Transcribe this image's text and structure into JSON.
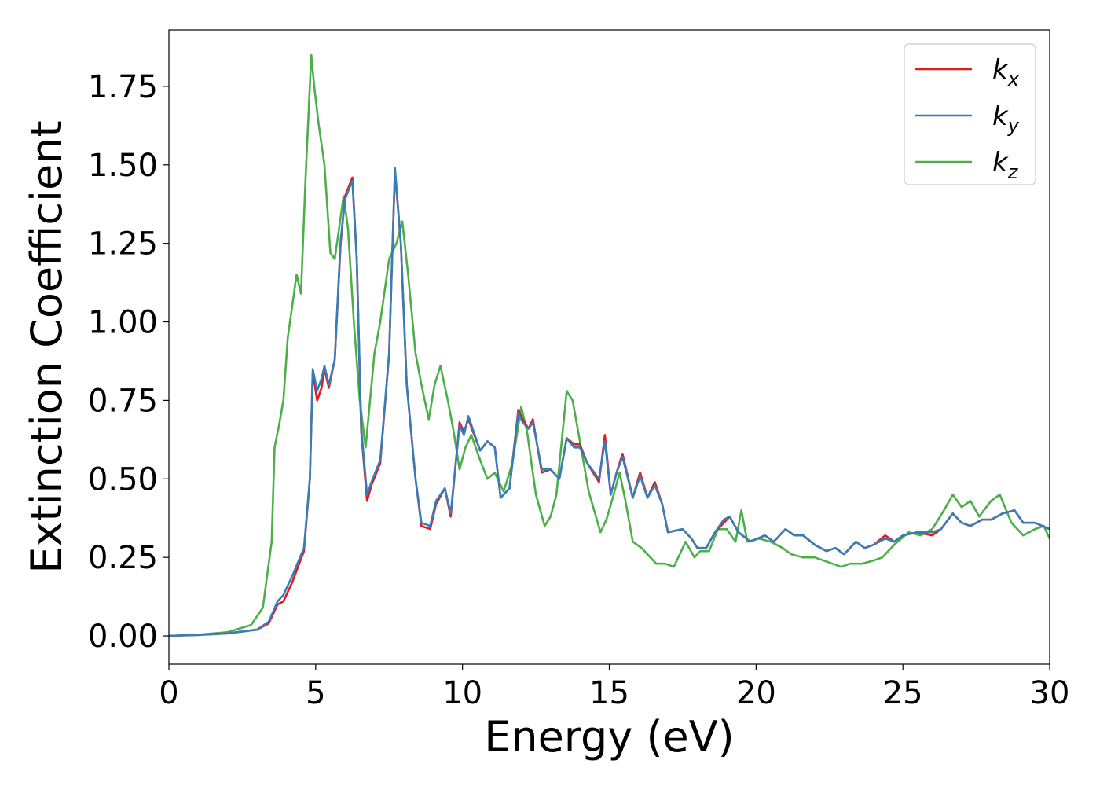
{
  "chart_data": {
    "type": "line",
    "title": "",
    "xlabel": "Energy (eV)",
    "ylabel": "Extinction Coefficient",
    "xlim": [
      0,
      30
    ],
    "ylim": [
      -0.09,
      1.93
    ],
    "xticks": [
      0,
      5,
      10,
      15,
      20,
      25,
      30
    ],
    "xtick_labels": [
      "0",
      "5",
      "10",
      "15",
      "20",
      "25",
      "30"
    ],
    "yticks": [
      0,
      0.25,
      0.5,
      0.75,
      1.0,
      1.25,
      1.5,
      1.75
    ],
    "ytick_labels": [
      "0.00",
      "0.25",
      "0.50",
      "0.75",
      "1.00",
      "1.25",
      "1.50",
      "1.75"
    ],
    "grid": false,
    "legend_position": "top-right",
    "series": [
      {
        "name": "k_x",
        "label_base": "k",
        "label_sub": "x",
        "color": "#e41a1c",
        "points": [
          [
            0,
            0
          ],
          [
            1,
            0.003
          ],
          [
            2,
            0.008
          ],
          [
            3,
            0.02
          ],
          [
            3.4,
            0.04
          ],
          [
            3.7,
            0.1
          ],
          [
            3.9,
            0.11
          ],
          [
            4.2,
            0.17
          ],
          [
            4.6,
            0.27
          ],
          [
            4.8,
            0.5
          ],
          [
            4.9,
            0.84
          ],
          [
            5.05,
            0.75
          ],
          [
            5.2,
            0.79
          ],
          [
            5.3,
            0.85
          ],
          [
            5.45,
            0.79
          ],
          [
            5.65,
            0.88
          ],
          [
            5.85,
            1.25
          ],
          [
            6.0,
            1.4
          ],
          [
            6.25,
            1.46
          ],
          [
            6.4,
            1.2
          ],
          [
            6.55,
            0.65
          ],
          [
            6.75,
            0.43
          ],
          [
            6.9,
            0.48
          ],
          [
            7.2,
            0.55
          ],
          [
            7.5,
            0.9
          ],
          [
            7.7,
            1.48
          ],
          [
            7.9,
            1.25
          ],
          [
            8.1,
            0.8
          ],
          [
            8.4,
            0.5
          ],
          [
            8.6,
            0.35
          ],
          [
            8.9,
            0.34
          ],
          [
            9.1,
            0.42
          ],
          [
            9.4,
            0.47
          ],
          [
            9.6,
            0.38
          ],
          [
            9.9,
            0.68
          ],
          [
            10.05,
            0.65
          ],
          [
            10.2,
            0.69
          ],
          [
            10.6,
            0.59
          ],
          [
            10.85,
            0.62
          ],
          [
            11.1,
            0.6
          ],
          [
            11.3,
            0.44
          ],
          [
            11.6,
            0.47
          ],
          [
            11.9,
            0.72
          ],
          [
            12.05,
            0.69
          ],
          [
            12.25,
            0.66
          ],
          [
            12.4,
            0.69
          ],
          [
            12.7,
            0.52
          ],
          [
            13.0,
            0.53
          ],
          [
            13.3,
            0.5
          ],
          [
            13.55,
            0.63
          ],
          [
            13.8,
            0.61
          ],
          [
            14.0,
            0.61
          ],
          [
            14.25,
            0.55
          ],
          [
            14.65,
            0.49
          ],
          [
            14.85,
            0.64
          ],
          [
            15.05,
            0.45
          ],
          [
            15.25,
            0.52
          ],
          [
            15.45,
            0.58
          ],
          [
            15.8,
            0.44
          ],
          [
            16.05,
            0.52
          ],
          [
            16.3,
            0.44
          ],
          [
            16.55,
            0.49
          ],
          [
            16.8,
            0.42
          ],
          [
            17.0,
            0.33
          ],
          [
            17.5,
            0.34
          ],
          [
            17.8,
            0.31
          ],
          [
            18.0,
            0.28
          ],
          [
            18.3,
            0.28
          ],
          [
            18.6,
            0.33
          ],
          [
            18.9,
            0.36
          ],
          [
            19.1,
            0.38
          ],
          [
            19.4,
            0.33
          ],
          [
            19.8,
            0.3
          ],
          [
            20.3,
            0.32
          ],
          [
            20.6,
            0.3
          ],
          [
            21.0,
            0.34
          ],
          [
            21.3,
            0.32
          ],
          [
            21.6,
            0.32
          ],
          [
            22.0,
            0.29
          ],
          [
            22.4,
            0.27
          ],
          [
            22.7,
            0.28
          ],
          [
            23.0,
            0.26
          ],
          [
            23.4,
            0.3
          ],
          [
            23.7,
            0.28
          ],
          [
            24.0,
            0.29
          ],
          [
            24.4,
            0.32
          ],
          [
            24.7,
            0.3
          ],
          [
            25.0,
            0.32
          ],
          [
            25.5,
            0.33
          ],
          [
            26.0,
            0.32
          ],
          [
            26.3,
            0.34
          ],
          [
            26.7,
            0.39
          ],
          [
            27.0,
            0.36
          ],
          [
            27.3,
            0.35
          ],
          [
            27.7,
            0.37
          ],
          [
            28.0,
            0.37
          ],
          [
            28.4,
            0.39
          ],
          [
            28.8,
            0.4
          ],
          [
            29.1,
            0.36
          ],
          [
            29.5,
            0.36
          ],
          [
            30,
            0.34
          ]
        ]
      },
      {
        "name": "k_y",
        "label_base": "k",
        "label_sub": "y",
        "color": "#377eb8",
        "points": [
          [
            0,
            0
          ],
          [
            1,
            0.003
          ],
          [
            2,
            0.008
          ],
          [
            3,
            0.02
          ],
          [
            3.4,
            0.045
          ],
          [
            3.7,
            0.11
          ],
          [
            3.9,
            0.13
          ],
          [
            4.2,
            0.19
          ],
          [
            4.6,
            0.28
          ],
          [
            4.8,
            0.5
          ],
          [
            4.9,
            0.85
          ],
          [
            5.05,
            0.78
          ],
          [
            5.2,
            0.82
          ],
          [
            5.3,
            0.86
          ],
          [
            5.45,
            0.8
          ],
          [
            5.65,
            0.88
          ],
          [
            5.85,
            1.26
          ],
          [
            6.0,
            1.39
          ],
          [
            6.25,
            1.45
          ],
          [
            6.4,
            1.2
          ],
          [
            6.55,
            0.66
          ],
          [
            6.75,
            0.45
          ],
          [
            6.9,
            0.49
          ],
          [
            7.2,
            0.56
          ],
          [
            7.5,
            0.9
          ],
          [
            7.7,
            1.49
          ],
          [
            7.9,
            1.25
          ],
          [
            8.1,
            0.8
          ],
          [
            8.4,
            0.5
          ],
          [
            8.6,
            0.36
          ],
          [
            8.9,
            0.35
          ],
          [
            9.1,
            0.43
          ],
          [
            9.4,
            0.47
          ],
          [
            9.6,
            0.39
          ],
          [
            9.9,
            0.67
          ],
          [
            10.05,
            0.64
          ],
          [
            10.2,
            0.7
          ],
          [
            10.6,
            0.59
          ],
          [
            10.85,
            0.62
          ],
          [
            11.1,
            0.6
          ],
          [
            11.3,
            0.44
          ],
          [
            11.6,
            0.47
          ],
          [
            11.9,
            0.71
          ],
          [
            12.05,
            0.68
          ],
          [
            12.25,
            0.66
          ],
          [
            12.4,
            0.68
          ],
          [
            12.7,
            0.53
          ],
          [
            13.0,
            0.53
          ],
          [
            13.3,
            0.5
          ],
          [
            13.55,
            0.63
          ],
          [
            13.8,
            0.6
          ],
          [
            14.0,
            0.6
          ],
          [
            14.25,
            0.55
          ],
          [
            14.65,
            0.5
          ],
          [
            14.85,
            0.62
          ],
          [
            15.05,
            0.45
          ],
          [
            15.25,
            0.52
          ],
          [
            15.45,
            0.57
          ],
          [
            15.8,
            0.44
          ],
          [
            16.05,
            0.51
          ],
          [
            16.3,
            0.44
          ],
          [
            16.55,
            0.48
          ],
          [
            16.8,
            0.42
          ],
          [
            17.0,
            0.33
          ],
          [
            17.5,
            0.34
          ],
          [
            17.8,
            0.31
          ],
          [
            18.0,
            0.28
          ],
          [
            18.3,
            0.28
          ],
          [
            18.6,
            0.33
          ],
          [
            18.9,
            0.37
          ],
          [
            19.1,
            0.38
          ],
          [
            19.4,
            0.33
          ],
          [
            19.8,
            0.3
          ],
          [
            20.3,
            0.32
          ],
          [
            20.6,
            0.3
          ],
          [
            21.0,
            0.34
          ],
          [
            21.3,
            0.32
          ],
          [
            21.6,
            0.32
          ],
          [
            22.0,
            0.29
          ],
          [
            22.4,
            0.27
          ],
          [
            22.7,
            0.28
          ],
          [
            23.0,
            0.26
          ],
          [
            23.4,
            0.3
          ],
          [
            23.7,
            0.28
          ],
          [
            24.0,
            0.29
          ],
          [
            24.4,
            0.31
          ],
          [
            24.7,
            0.3
          ],
          [
            25.0,
            0.32
          ],
          [
            25.5,
            0.33
          ],
          [
            26.0,
            0.33
          ],
          [
            26.3,
            0.34
          ],
          [
            26.7,
            0.39
          ],
          [
            27.0,
            0.36
          ],
          [
            27.3,
            0.35
          ],
          [
            27.7,
            0.37
          ],
          [
            28.0,
            0.37
          ],
          [
            28.4,
            0.39
          ],
          [
            28.8,
            0.4
          ],
          [
            29.1,
            0.36
          ],
          [
            29.5,
            0.36
          ],
          [
            30,
            0.34
          ]
        ]
      },
      {
        "name": "k_z",
        "label_base": "k",
        "label_sub": "z",
        "color": "#4daf4a",
        "points": [
          [
            0,
            0
          ],
          [
            1,
            0.004
          ],
          [
            2,
            0.012
          ],
          [
            2.8,
            0.035
          ],
          [
            3.2,
            0.09
          ],
          [
            3.5,
            0.3
          ],
          [
            3.6,
            0.6
          ],
          [
            3.75,
            0.67
          ],
          [
            3.9,
            0.75
          ],
          [
            4.05,
            0.95
          ],
          [
            4.2,
            1.05
          ],
          [
            4.35,
            1.15
          ],
          [
            4.5,
            1.09
          ],
          [
            4.65,
            1.45
          ],
          [
            4.85,
            1.85
          ],
          [
            4.95,
            1.75
          ],
          [
            5.1,
            1.63
          ],
          [
            5.3,
            1.5
          ],
          [
            5.5,
            1.22
          ],
          [
            5.65,
            1.2
          ],
          [
            5.8,
            1.3
          ],
          [
            5.95,
            1.4
          ],
          [
            6.1,
            1.3
          ],
          [
            6.3,
            1.0
          ],
          [
            6.5,
            0.75
          ],
          [
            6.7,
            0.6
          ],
          [
            6.85,
            0.75
          ],
          [
            7.0,
            0.9
          ],
          [
            7.2,
            1.0
          ],
          [
            7.5,
            1.2
          ],
          [
            7.75,
            1.25
          ],
          [
            7.95,
            1.32
          ],
          [
            8.15,
            1.15
          ],
          [
            8.4,
            0.9
          ],
          [
            8.6,
            0.8
          ],
          [
            8.85,
            0.69
          ],
          [
            9.05,
            0.8
          ],
          [
            9.25,
            0.86
          ],
          [
            9.5,
            0.75
          ],
          [
            9.7,
            0.65
          ],
          [
            9.9,
            0.53
          ],
          [
            10.1,
            0.6
          ],
          [
            10.3,
            0.64
          ],
          [
            10.6,
            0.56
          ],
          [
            10.85,
            0.5
          ],
          [
            11.1,
            0.52
          ],
          [
            11.4,
            0.46
          ],
          [
            11.7,
            0.55
          ],
          [
            12.0,
            0.73
          ],
          [
            12.2,
            0.65
          ],
          [
            12.5,
            0.45
          ],
          [
            12.8,
            0.35
          ],
          [
            13.0,
            0.38
          ],
          [
            13.2,
            0.45
          ],
          [
            13.55,
            0.78
          ],
          [
            13.75,
            0.75
          ],
          [
            14.0,
            0.62
          ],
          [
            14.3,
            0.46
          ],
          [
            14.7,
            0.33
          ],
          [
            14.9,
            0.37
          ],
          [
            15.15,
            0.45
          ],
          [
            15.35,
            0.52
          ],
          [
            15.55,
            0.43
          ],
          [
            15.8,
            0.3
          ],
          [
            16.1,
            0.28
          ],
          [
            16.6,
            0.23
          ],
          [
            16.9,
            0.23
          ],
          [
            17.2,
            0.22
          ],
          [
            17.6,
            0.3
          ],
          [
            17.9,
            0.25
          ],
          [
            18.1,
            0.27
          ],
          [
            18.4,
            0.27
          ],
          [
            18.7,
            0.34
          ],
          [
            19.0,
            0.34
          ],
          [
            19.3,
            0.3
          ],
          [
            19.5,
            0.4
          ],
          [
            19.7,
            0.3
          ],
          [
            20.1,
            0.31
          ],
          [
            20.5,
            0.3
          ],
          [
            20.9,
            0.28
          ],
          [
            21.2,
            0.26
          ],
          [
            21.6,
            0.25
          ],
          [
            22.0,
            0.25
          ],
          [
            22.3,
            0.24
          ],
          [
            22.6,
            0.23
          ],
          [
            22.9,
            0.22
          ],
          [
            23.2,
            0.23
          ],
          [
            23.6,
            0.23
          ],
          [
            24.0,
            0.24
          ],
          [
            24.3,
            0.25
          ],
          [
            24.7,
            0.29
          ],
          [
            25.2,
            0.33
          ],
          [
            25.6,
            0.32
          ],
          [
            26.0,
            0.34
          ],
          [
            26.4,
            0.4
          ],
          [
            26.7,
            0.45
          ],
          [
            27.0,
            0.41
          ],
          [
            27.3,
            0.43
          ],
          [
            27.6,
            0.38
          ],
          [
            28.0,
            0.43
          ],
          [
            28.3,
            0.45
          ],
          [
            28.7,
            0.36
          ],
          [
            29.1,
            0.32
          ],
          [
            29.5,
            0.34
          ],
          [
            29.8,
            0.35
          ],
          [
            30,
            0.31
          ]
        ]
      }
    ]
  }
}
